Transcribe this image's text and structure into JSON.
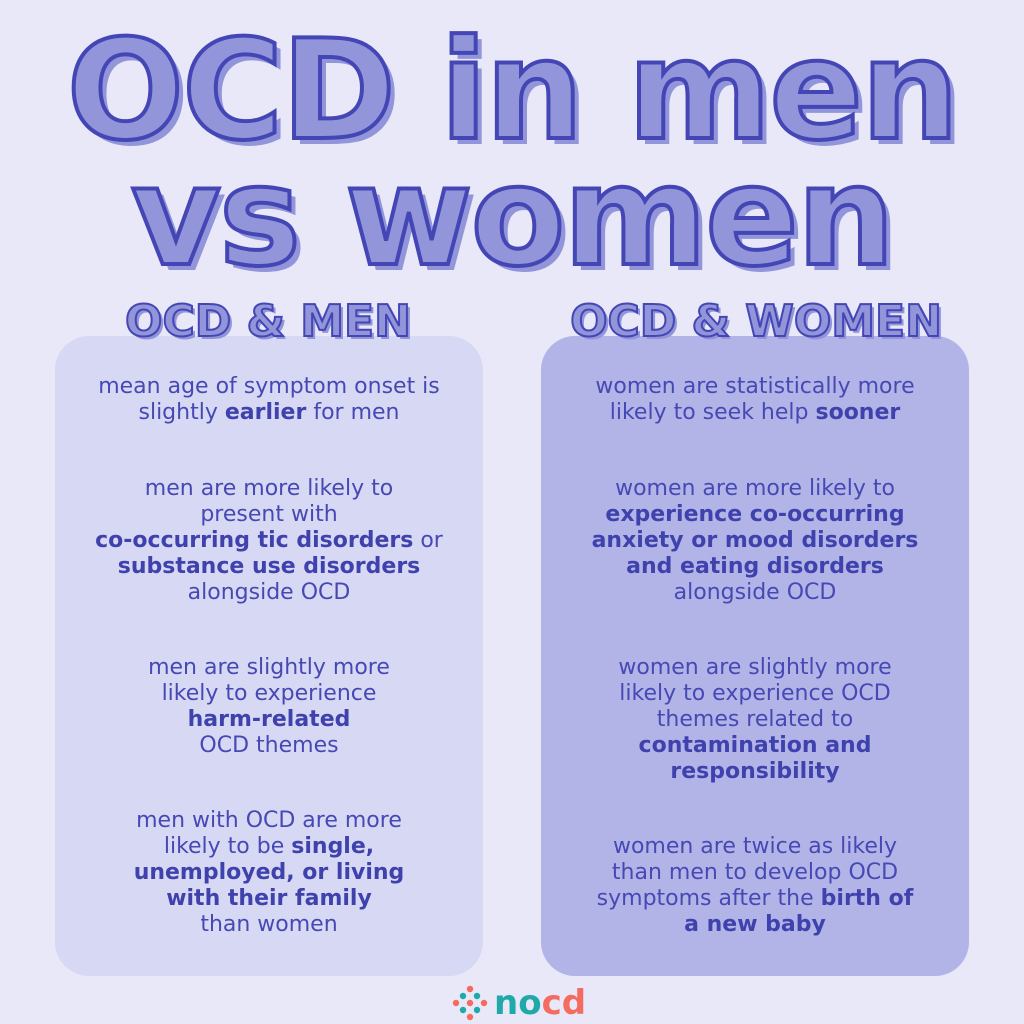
{
  "title": {
    "line1": "OCD in men",
    "line2": "vs women"
  },
  "colors": {
    "background": "#e8e8f9",
    "outline": "#4346b4",
    "shadow": "#9395da",
    "left_panel": "#d7d8f4",
    "right_panel": "#b2b4e8",
    "logo_teal": "#1fa9a8",
    "logo_coral": "#f46b5f"
  },
  "men": {
    "heading": "OCD & MEN",
    "items": [
      {
        "parts": [
          "mean age of symptom onset is slightly ",
          "earlier",
          " for men"
        ]
      },
      {
        "parts": [
          "men are more likely to present with ",
          "co-occurring tic disorders",
          " or ",
          "substance use disorders",
          " alongside OCD"
        ]
      },
      {
        "parts": [
          "men are slightly more likely to experience ",
          "harm-related",
          " OCD themes"
        ]
      },
      {
        "parts": [
          "men with OCD are more likely to be ",
          "single, unemployed, or living with their family",
          " than women"
        ]
      }
    ]
  },
  "women": {
    "heading": "OCD & WOMEN",
    "items": [
      {
        "parts": [
          "women are statistically more likely to seek help ",
          "sooner"
        ]
      },
      {
        "parts": [
          "women are more likely to ",
          "experience co-occurring anxiety or mood disorders and eating disorders",
          " alongside OCD"
        ]
      },
      {
        "parts": [
          "women are slightly more likely to experience OCD themes related to ",
          "contamination and responsibility"
        ]
      },
      {
        "parts": [
          "women are twice as likely than men to develop OCD symptoms after the ",
          "birth of a new baby"
        ]
      }
    ]
  },
  "logo": {
    "text_teal": "no",
    "text_coral": "cd"
  }
}
